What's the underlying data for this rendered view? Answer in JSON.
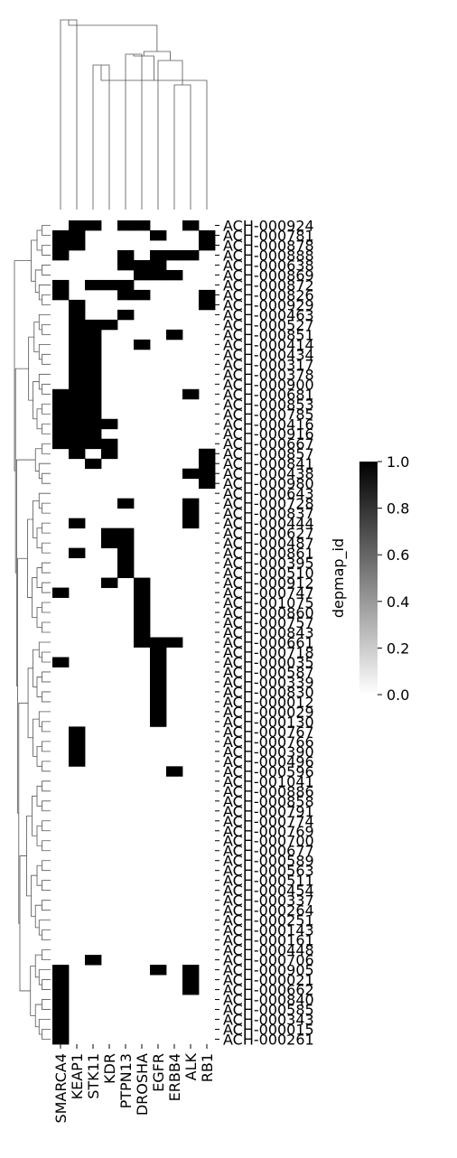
{
  "chart_data": {
    "type": "heatmap",
    "title": "",
    "xlabel": "",
    "ylabel": "",
    "colorbar": {
      "label": "depmap_id",
      "range": [
        0.0,
        1.0
      ],
      "ticks": [
        "0.0",
        "0.2",
        "0.4",
        "0.6",
        "0.8",
        "1.0"
      ],
      "colormap": "Greys"
    },
    "columns": [
      "SMARCA4",
      "KEAP1",
      "STK11",
      "KDR",
      "PTPN13",
      "DROSHA",
      "EGFR",
      "ERBB4",
      "ALK",
      "RB1"
    ],
    "row_labels": [
      "ACH-000924",
      "ACH-000781",
      "ACH-000878",
      "ACH-000888",
      "ACH-000638",
      "ACH-000869",
      "ACH-000872",
      "ACH-000826",
      "ACH-000929",
      "ACH-000463",
      "ACH-000527",
      "ACH-000851",
      "ACH-000414",
      "ACH-000434",
      "ACH-000317",
      "ACH-000378",
      "ACH-000900",
      "ACH-000681",
      "ACH-000853",
      "ACH-000785",
      "ACH-000416",
      "ACH-000916",
      "ACH-000667",
      "ACH-000857",
      "ACH-000841",
      "ACH-000438",
      "ACH-000980",
      "ACH-000643",
      "ACH-000728",
      "ACH-000837",
      "ACH-000444",
      "ACH-000627",
      "ACH-000487",
      "ACH-000861",
      "ACH-000395",
      "ACH-000510",
      "ACH-000912",
      "ACH-000747",
      "ACH-001075",
      "ACH-000860",
      "ACH-000757",
      "ACH-000843",
      "ACH-000661",
      "ACH-000718",
      "ACH-000035",
      "ACH-000587",
      "ACH-000339",
      "ACH-000830",
      "ACH-000012",
      "ACH-000029",
      "ACH-000130",
      "ACH-000767",
      "ACH-000766",
      "ACH-000390",
      "ACH-000496",
      "ACH-000596",
      "ACH-001041",
      "ACH-000886",
      "ACH-000858",
      "ACH-000791",
      "ACH-000774",
      "ACH-000769",
      "ACH-000700",
      "ACH-000677",
      "ACH-000589",
      "ACH-000563",
      "ACH-000511",
      "ACH-000454",
      "ACH-000337",
      "ACH-000264",
      "ACH-000251",
      "ACH-000143",
      "ACH-000161",
      "ACH-000448",
      "ACH-000706",
      "ACH-000905",
      "ACH-000021",
      "ACH-000662",
      "ACH-000840",
      "ACH-000585",
      "ACH-000343",
      "ACH-000015",
      "ACH-000261"
    ],
    "tick_labels": [
      "ACH-000924",
      "ACH-000781",
      "ACH-000878",
      "ACH-000888",
      "ACH-000638",
      "ACH-000869",
      "ACH-000872",
      "ACH-000826",
      "ACH-000929",
      "ACH-000463",
      "ACH-000527",
      "ACH-000851",
      "ACH-000414",
      "ACH-000434",
      "ACH-000317",
      "ACH-000378",
      "ACH-000900",
      "ACH-000681",
      "ACH-000853",
      "ACH-000785",
      "ACH-000416",
      "ACH-000916",
      "ACH-000667",
      "ACH-000857",
      "ACH-000841",
      "ACH-000438",
      "ACH-000980",
      "ACH-000643",
      "ACH-000728",
      "ACH-000837",
      "ACH-000444",
      "ACH-000627",
      "ACH-000487",
      "ACH-000861",
      "ACH-000395",
      "ACH-000510",
      "ACH-000912",
      "ACH-000747",
      "ACH-001075",
      "ACH-000860",
      "ACH-000757",
      "ACH-000843",
      "ACH-000661",
      "ACH-000718",
      "ACH-000035",
      "ACH-000587",
      "ACH-000339",
      "ACH-000830",
      "ACH-000012",
      "ACH-000029",
      "ACH-000130",
      "ACH-000767",
      "ACH-000766",
      "ACH-000390",
      "ACH-000496",
      "ACH-000596",
      "ACH-001041",
      "ACH-000886",
      "ACH-000858",
      "ACH-000791",
      "ACH-000774",
      "ACH-000769",
      "ACH-000700",
      "ACH-000677",
      "ACH-000589",
      "ACH-000563",
      "ACH-000511",
      "ACH-000454",
      "ACH-000337",
      "ACH-000264",
      "ACH-000251",
      "ACH-000143",
      "ACH-000161",
      "ACH-000448",
      "ACH-000706",
      "ACH-000905",
      "ACH-000021",
      "ACH-000662",
      "ACH-000840",
      "ACH-000585",
      "ACH-000343",
      "ACH-000015",
      "ACH-000261"
    ],
    "rows_hidden_estimate": "labels partially overlapped in source; only visible ticks",
    "cells": [
      "0110110010",
      "1100001001",
      "1100000001",
      "1000101110",
      "0000111000",
      "0000011100",
      "1011100000",
      "1000110001",
      "0100000001",
      "0100100000",
      "0111000000",
      "0110000100",
      "0110010000",
      "0110000000",
      "0110000000",
      "0110000000",
      "0110000000",
      "1110000010",
      "1110000000",
      "1110000000",
      "1111000000",
      "1110000000",
      "1111000000",
      "0101000001",
      "0010000001",
      "0000000011",
      "0000000001",
      "0000000000",
      "0000100010",
      "0000000010",
      "0100000010",
      "0001100000",
      "0001100000",
      "0100100000",
      "0000100000",
      "0000100000",
      "0001010000",
      "1000010000",
      "0000010000",
      "0000010000",
      "0000010000",
      "0000010000",
      "0000011100",
      "0000001000",
      "1000001000",
      "0000001000",
      "0000001000",
      "0000001000",
      "0000001000",
      "0000001000",
      "0000001000",
      "0100000000",
      "0100000000",
      "0100000000",
      "0100000000",
      "0000000100",
      "0000000000",
      "0000000000",
      "0000000000",
      "0000000000",
      "0000000000",
      "0000000000",
      "0000000000",
      "0000000000",
      "0000000000",
      "0000000000",
      "0000000000",
      "0000000000",
      "0000000000",
      "0000000000",
      "0000000000",
      "0000000000",
      "0000000000",
      "0000000000",
      "0010000000",
      "1000001010",
      "1000000010",
      "1000000010",
      "1000000000",
      "1000000000",
      "1000000000",
      "1000000000",
      "1000000000"
    ]
  }
}
